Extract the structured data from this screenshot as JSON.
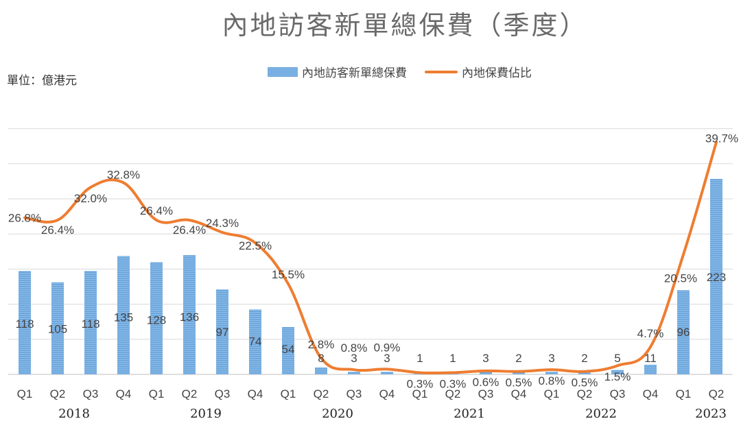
{
  "page": {
    "title": "內地訪客新單總保費（季度）",
    "unit_label": "單位：億港元"
  },
  "legend": {
    "bar_label": "內地訪客新單總保費",
    "line_label": "內地保費佔比"
  },
  "colors": {
    "bar": "#6ea7dd",
    "bar_light": "#8fbfe9",
    "line": "#ee7d31",
    "grid": "#d9d9d9",
    "text": "#444444"
  },
  "chart_data": {
    "type": "bar",
    "categories": [
      "Q1",
      "Q2",
      "Q3",
      "Q4",
      "Q1",
      "Q2",
      "Q3",
      "Q4",
      "Q1",
      "Q2",
      "Q3",
      "Q4",
      "Q1",
      "Q2",
      "Q3",
      "Q4",
      "Q1",
      "Q2",
      "Q3",
      "Q4",
      "Q1",
      "Q2"
    ],
    "years": [
      {
        "label": "2018",
        "start": 0,
        "end": 3
      },
      {
        "label": "2019",
        "start": 4,
        "end": 7
      },
      {
        "label": "2020",
        "start": 8,
        "end": 11
      },
      {
        "label": "2021",
        "start": 12,
        "end": 15
      },
      {
        "label": "2022",
        "start": 16,
        "end": 19
      },
      {
        "label": "2023",
        "start": 20,
        "end": 21
      }
    ],
    "series": [
      {
        "name": "內地訪客新單總保費",
        "kind": "bar",
        "values": [
          118,
          105,
          118,
          135,
          128,
          136,
          97,
          74,
          54,
          8,
          3,
          3,
          1,
          1,
          3,
          2,
          3,
          2,
          5,
          11,
          96,
          223
        ],
        "labels": [
          "118",
          "105",
          "118",
          "135",
          "128",
          "136",
          "97",
          "74",
          "54",
          "8",
          "3",
          "3",
          "1",
          "1",
          "3",
          "2",
          "3",
          "2",
          "5",
          "11",
          "96",
          "223"
        ]
      },
      {
        "name": "內地保費佔比",
        "kind": "line",
        "values": [
          26.8,
          26.4,
          32.0,
          32.8,
          26.4,
          26.4,
          24.3,
          22.5,
          15.5,
          2.8,
          0.8,
          0.9,
          0.3,
          0.3,
          0.6,
          0.5,
          0.8,
          0.5,
          1.5,
          4.7,
          20.5,
          39.7
        ],
        "labels": [
          "26.8%",
          "26.4%",
          "32.0%",
          "32.8%",
          "26.4%",
          "26.4%",
          "24.3%",
          "22.5%",
          "15.5%",
          "2.8%",
          "0.8%",
          "0.9%",
          "0.3%",
          "0.3%",
          "0.6%",
          "0.5%",
          "0.8%",
          "0.5%",
          "1.5%",
          "4.7%",
          "20.5%",
          "39.7%"
        ]
      }
    ],
    "bar_ylim": [
      0,
      280
    ],
    "line_ylim": [
      0,
      42
    ],
    "grid": true,
    "legend_position": "top-center"
  }
}
